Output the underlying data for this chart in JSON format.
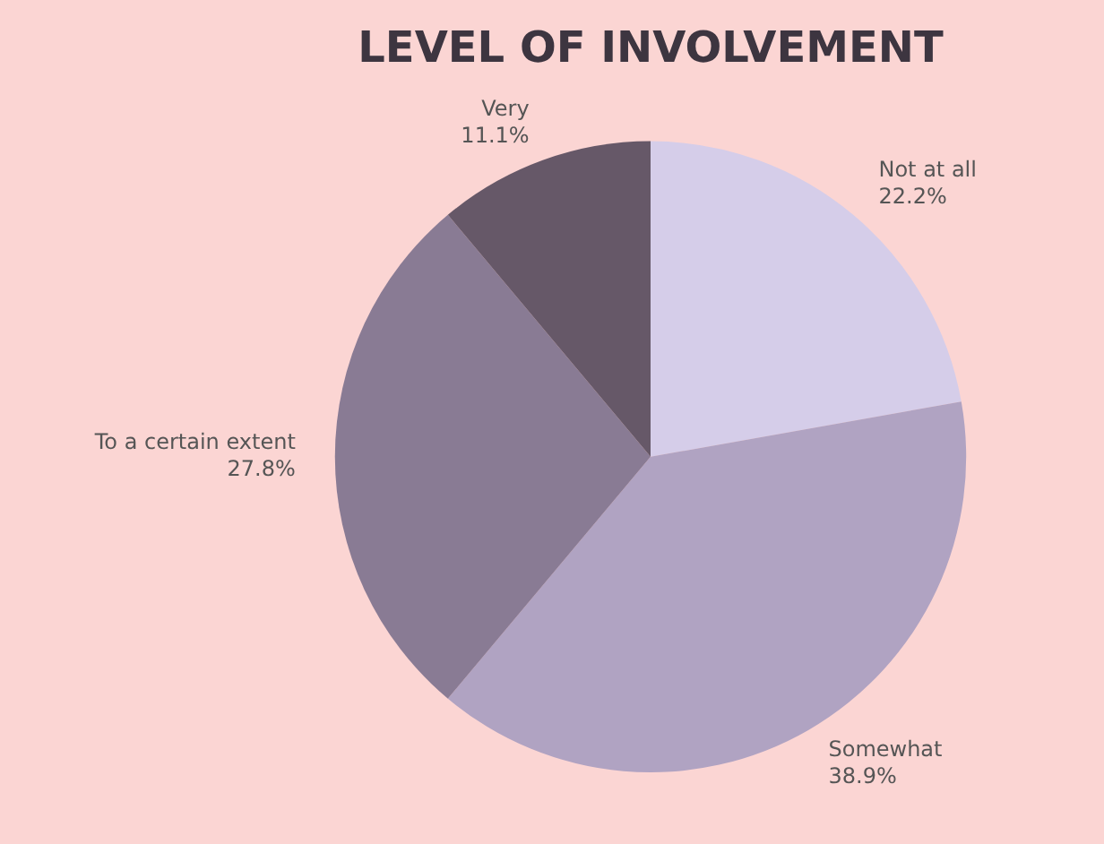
{
  "chart_data": {
    "type": "pie",
    "title": "LEVEL OF INVOLVEMENT",
    "categories": [
      "Not at all",
      "Somewhat",
      "To a certain extent",
      "Very"
    ],
    "values": [
      22.2,
      38.9,
      27.8,
      11.1
    ],
    "colors": [
      "#d5cde9",
      "#b0a3c2",
      "#897b94",
      "#665868"
    ],
    "value_labels": [
      "22.2%",
      "38.9%",
      "27.8%",
      "11.1%"
    ],
    "legend": false
  }
}
